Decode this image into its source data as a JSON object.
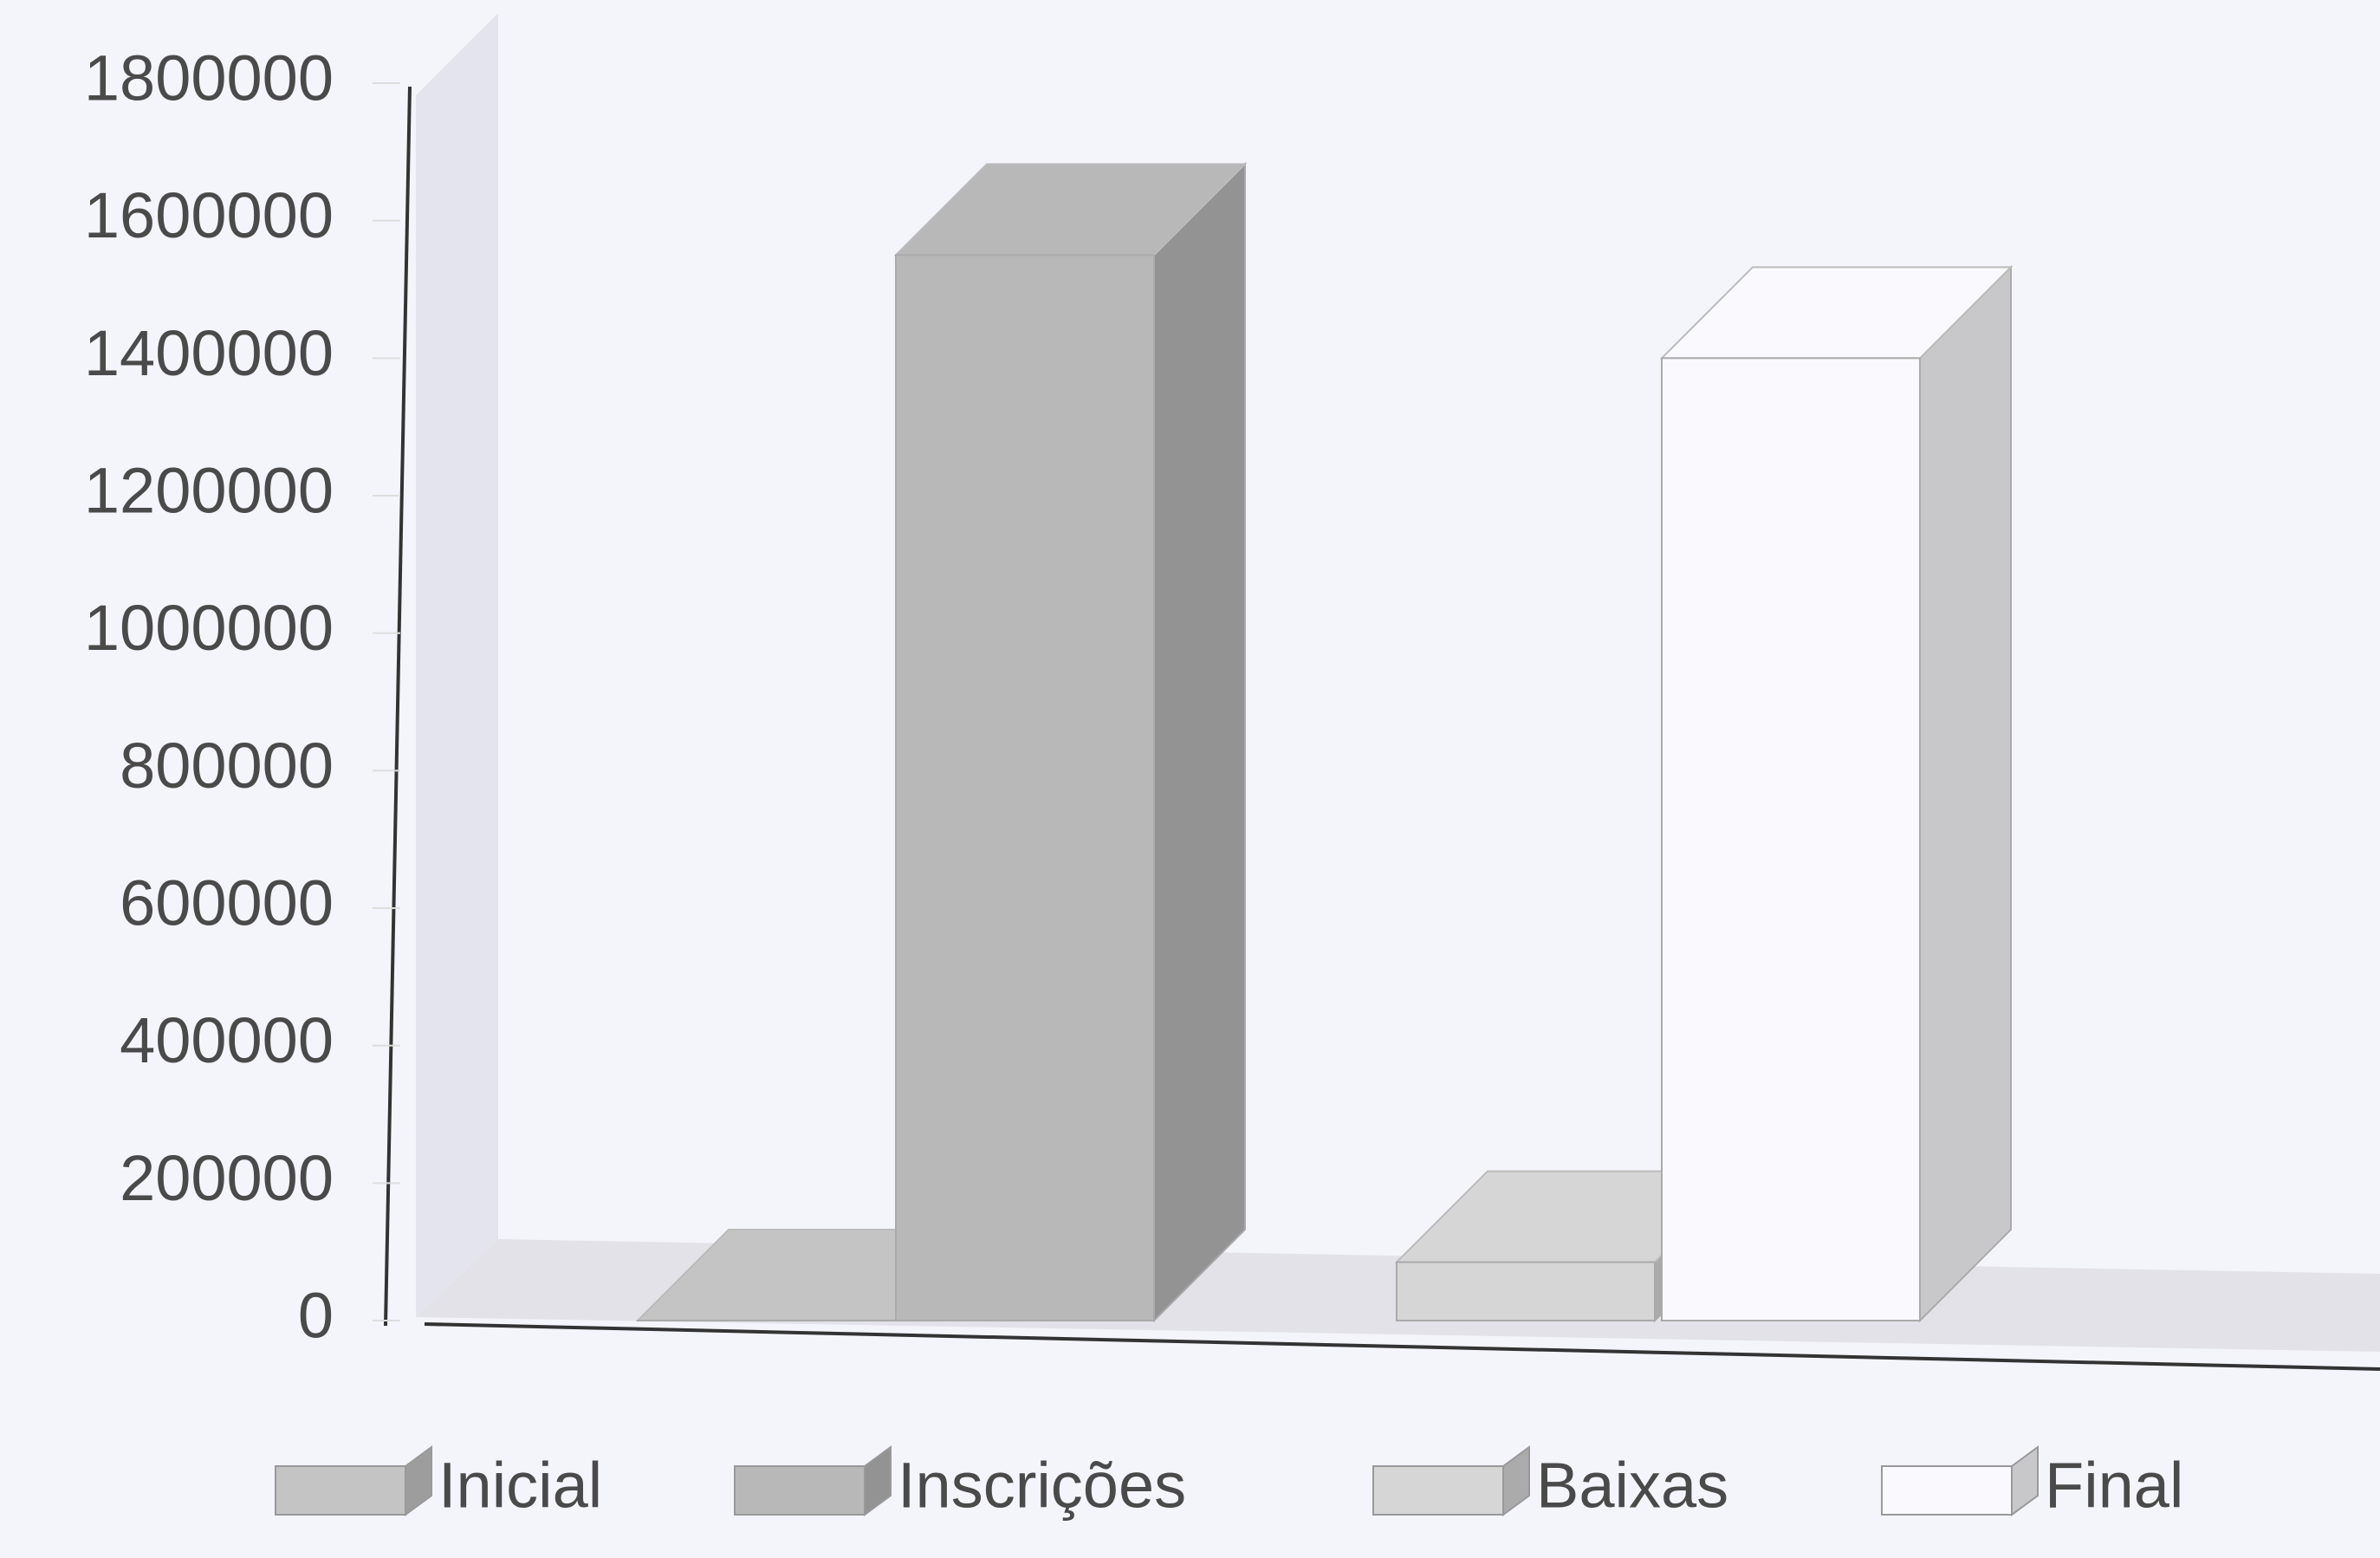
{
  "chart_data": {
    "type": "bar3d",
    "categories": [
      null
    ],
    "series": [
      {
        "name": "Inicial",
        "color": "#c4c4c4",
        "values": [
          0
        ]
      },
      {
        "name": "Inscrições",
        "color": "#b8b8b8",
        "values": [
          1550000
        ]
      },
      {
        "name": "Baixas",
        "color": "#d6d6d6",
        "values": [
          85000
        ]
      },
      {
        "name": "Final",
        "color": "#fafafe",
        "values": [
          1400000
        ]
      }
    ],
    "ylim": [
      0,
      1800000
    ],
    "yticks": [
      0,
      200000,
      400000,
      600000,
      800000,
      1000000,
      1200000,
      1400000,
      1600000,
      1800000
    ],
    "grid": false
  }
}
